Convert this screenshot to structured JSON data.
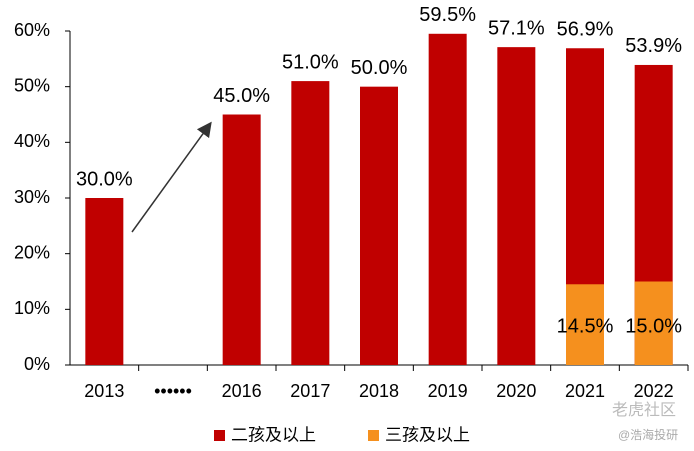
{
  "chart_data": {
    "type": "bar",
    "categories": [
      "2013",
      "••••••",
      "2016",
      "2017",
      "2018",
      "2019",
      "2020",
      "2021",
      "2022"
    ],
    "series": [
      {
        "name": "二孩及以上",
        "color": "#c00000",
        "values": [
          30.0,
          null,
          45.0,
          51.0,
          50.0,
          59.5,
          57.1,
          56.9,
          53.9
        ],
        "value_labels": [
          "30.0%",
          null,
          "45.0%",
          "51.0%",
          "50.0%",
          "59.5%",
          "57.1%",
          "56.9%",
          "53.9%"
        ]
      },
      {
        "name": "三孩及以上",
        "color": "#f5901e",
        "values": [
          null,
          null,
          null,
          null,
          null,
          null,
          null,
          14.5,
          15.0
        ],
        "value_labels": [
          null,
          null,
          null,
          null,
          null,
          null,
          null,
          "14.5%",
          "15.0%"
        ]
      }
    ],
    "ylim": [
      0,
      60
    ],
    "yticks": [
      {
        "value": 0,
        "label": "0%"
      },
      {
        "value": 10,
        "label": "10%"
      },
      {
        "value": 20,
        "label": "20%"
      },
      {
        "value": 30,
        "label": "30%"
      },
      {
        "value": 40,
        "label": "40%"
      },
      {
        "value": 50,
        "label": "50%"
      },
      {
        "value": 60,
        "label": "60%"
      }
    ],
    "legend": "bottom"
  },
  "watermarks": [
    "老虎社区",
    "@浩海投研"
  ]
}
